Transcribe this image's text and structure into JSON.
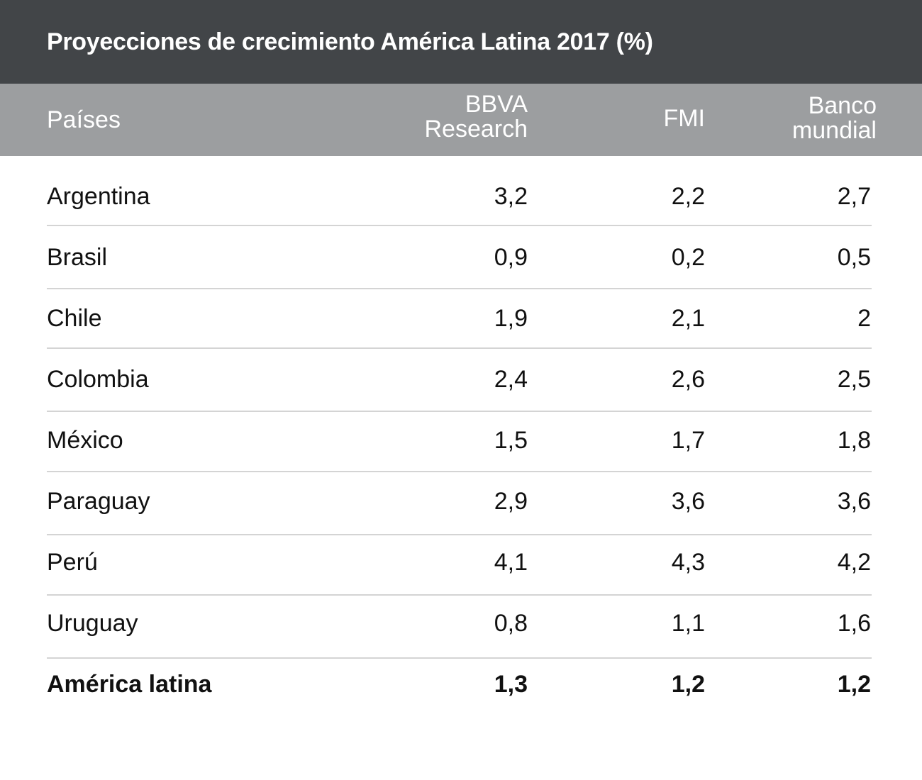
{
  "chart_data": {
    "type": "table",
    "title": "Proyecciones de crecimiento América Latina 2017 (%)",
    "columns": [
      {
        "label_lines": [
          "Países"
        ]
      },
      {
        "label_lines": [
          "BBVA",
          "Research"
        ]
      },
      {
        "label_lines": [
          "FMI"
        ]
      },
      {
        "label_lines": [
          "Banco",
          "mundial"
        ]
      }
    ],
    "rows": [
      {
        "country": "Argentina",
        "values": [
          "3,2",
          "2,2",
          "2,7"
        ]
      },
      {
        "country": "Brasil",
        "values": [
          "0,9",
          "0,2",
          "0,5"
        ]
      },
      {
        "country": "Chile",
        "values": [
          "1,9",
          "2,1",
          "2"
        ]
      },
      {
        "country": "Colombia",
        "values": [
          "2,4",
          "2,6",
          "2,5"
        ]
      },
      {
        "country": "México",
        "values": [
          "1,5",
          "1,7",
          "1,8"
        ]
      },
      {
        "country": "Paraguay",
        "values": [
          "2,9",
          "3,6",
          "3,6"
        ]
      },
      {
        "country": "Perú",
        "values": [
          "4,1",
          "4,3",
          "4,2"
        ]
      },
      {
        "country": "Uruguay",
        "values": [
          "0,8",
          "1,1",
          "1,6"
        ]
      }
    ],
    "total": {
      "country": "América latina",
      "values": [
        "1,3",
        "1,2",
        "1,2"
      ]
    },
    "colors": {
      "title_bg": "#424548",
      "header_bg": "#9c9ea0",
      "header_text": "#ffffff",
      "divider": "#d4d4d4"
    }
  }
}
